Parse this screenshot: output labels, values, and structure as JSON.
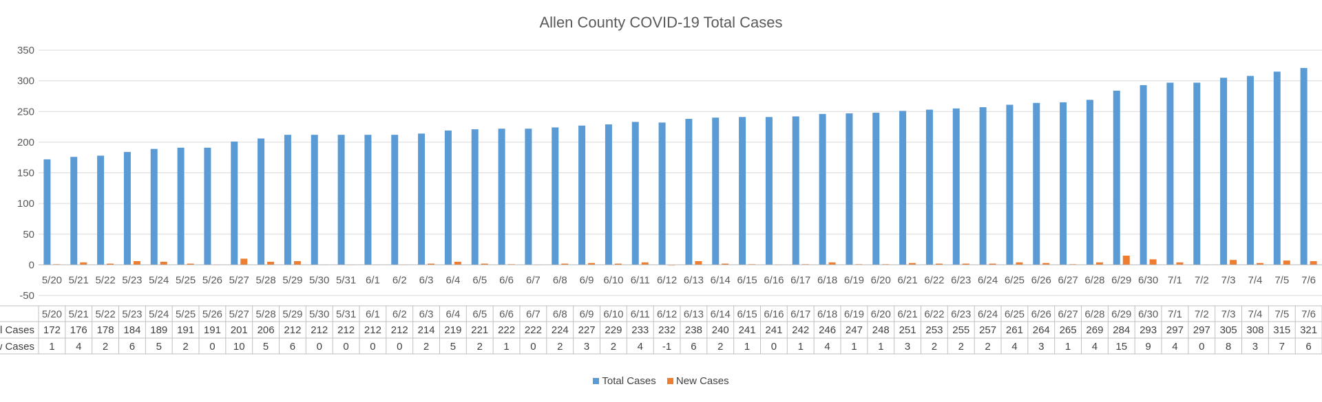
{
  "chart_data": {
    "type": "bar",
    "title": "Allen County COVID-19 Total Cases",
    "categories": [
      "5/20",
      "5/21",
      "5/22",
      "5/23",
      "5/24",
      "5/25",
      "5/26",
      "5/27",
      "5/28",
      "5/29",
      "5/30",
      "5/31",
      "6/1",
      "6/2",
      "6/3",
      "6/4",
      "6/5",
      "6/6",
      "6/7",
      "6/8",
      "6/9",
      "6/10",
      "6/11",
      "6/12",
      "6/13",
      "6/14",
      "6/15",
      "6/16",
      "6/17",
      "6/18",
      "6/19",
      "6/20",
      "6/21",
      "6/22",
      "6/23",
      "6/24",
      "6/25",
      "6/26",
      "6/27",
      "6/28",
      "6/29",
      "6/30",
      "7/1",
      "7/2",
      "7/3",
      "7/4",
      "7/5",
      "7/6"
    ],
    "series": [
      {
        "name": "Total Cases",
        "color": "#5B9BD5",
        "values": [
          172,
          176,
          178,
          184,
          189,
          191,
          191,
          201,
          206,
          212,
          212,
          212,
          212,
          212,
          214,
          219,
          221,
          222,
          222,
          224,
          227,
          229,
          233,
          232,
          238,
          240,
          241,
          241,
          242,
          246,
          247,
          248,
          251,
          253,
          255,
          257,
          261,
          264,
          265,
          269,
          284,
          293,
          297,
          297,
          305,
          308,
          315,
          321
        ]
      },
      {
        "name": "New Cases",
        "color": "#ED7D31",
        "values": [
          1,
          4,
          2,
          6,
          5,
          2,
          0,
          10,
          5,
          6,
          0,
          0,
          0,
          0,
          2,
          5,
          2,
          1,
          0,
          2,
          3,
          2,
          4,
          -1,
          6,
          2,
          1,
          0,
          1,
          4,
          1,
          1,
          3,
          2,
          2,
          2,
          4,
          3,
          1,
          4,
          15,
          9,
          4,
          0,
          8,
          3,
          7,
          6
        ]
      }
    ],
    "ylim": [
      -50,
      350
    ],
    "yticks": [
      -50,
      0,
      50,
      100,
      150,
      200,
      250,
      300,
      350
    ],
    "grid": true,
    "legend": "bottom",
    "data_table": true
  }
}
